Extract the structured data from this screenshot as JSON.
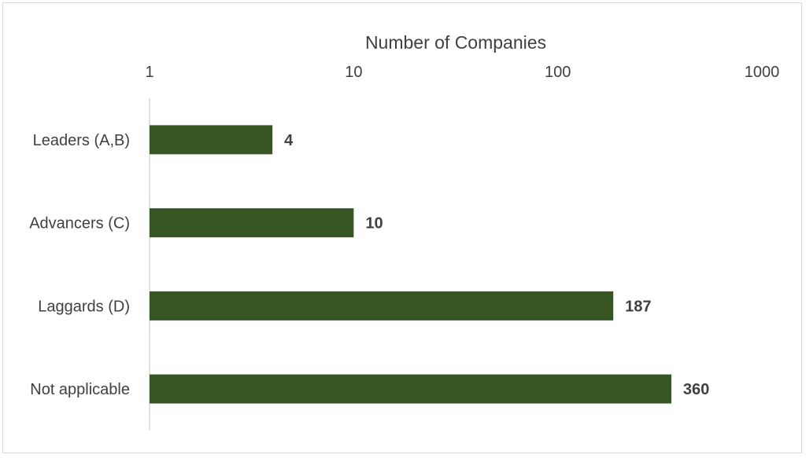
{
  "chart_data": {
    "type": "bar",
    "orientation": "horizontal",
    "xlabel": "Number of Companies",
    "ylabel": "",
    "x_scale": "log10",
    "xlim": [
      1,
      1000
    ],
    "x_ticks": [
      "1",
      "10",
      "100",
      "1000"
    ],
    "x_axis_position": "top",
    "categories": [
      "Leaders (A,B)",
      "Advancers (C)",
      "Laggards (D)",
      "Not applicable"
    ],
    "values": [
      4,
      10,
      187,
      360
    ],
    "data_labels": [
      "4",
      "10",
      "187",
      "360"
    ],
    "bar_color": "#375623",
    "grid": false,
    "legend": "none"
  }
}
